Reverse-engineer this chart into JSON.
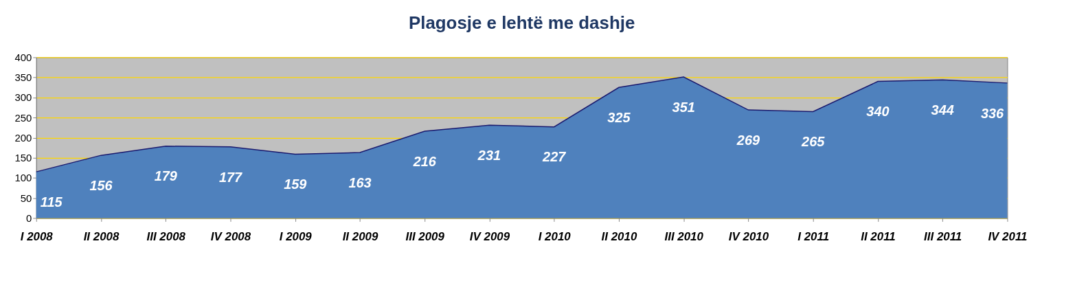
{
  "chart_data": {
    "type": "area",
    "title": "Plagosje e lehtë me dashje",
    "categories": [
      "I 2008",
      "II 2008",
      "III 2008",
      "IV 2008",
      "I 2009",
      "II 2009",
      "III 2009",
      "IV 2009",
      "I 2010",
      "II 2010",
      "III 2010",
      "IV 2010",
      "I 2011",
      "II 2011",
      "III 2011",
      "IV 2011"
    ],
    "series": [
      {
        "color": "#4f81bd",
        "values": [
          115,
          156,
          179,
          177,
          159,
          163,
          216,
          231,
          227,
          325,
          351,
          269,
          265,
          340,
          344,
          336
        ]
      }
    ],
    "ylim": [
      0,
      400
    ],
    "yticks": [
      0,
      50,
      100,
      150,
      200,
      250,
      300,
      350,
      400
    ],
    "grid": "y",
    "data_labels": true
  }
}
